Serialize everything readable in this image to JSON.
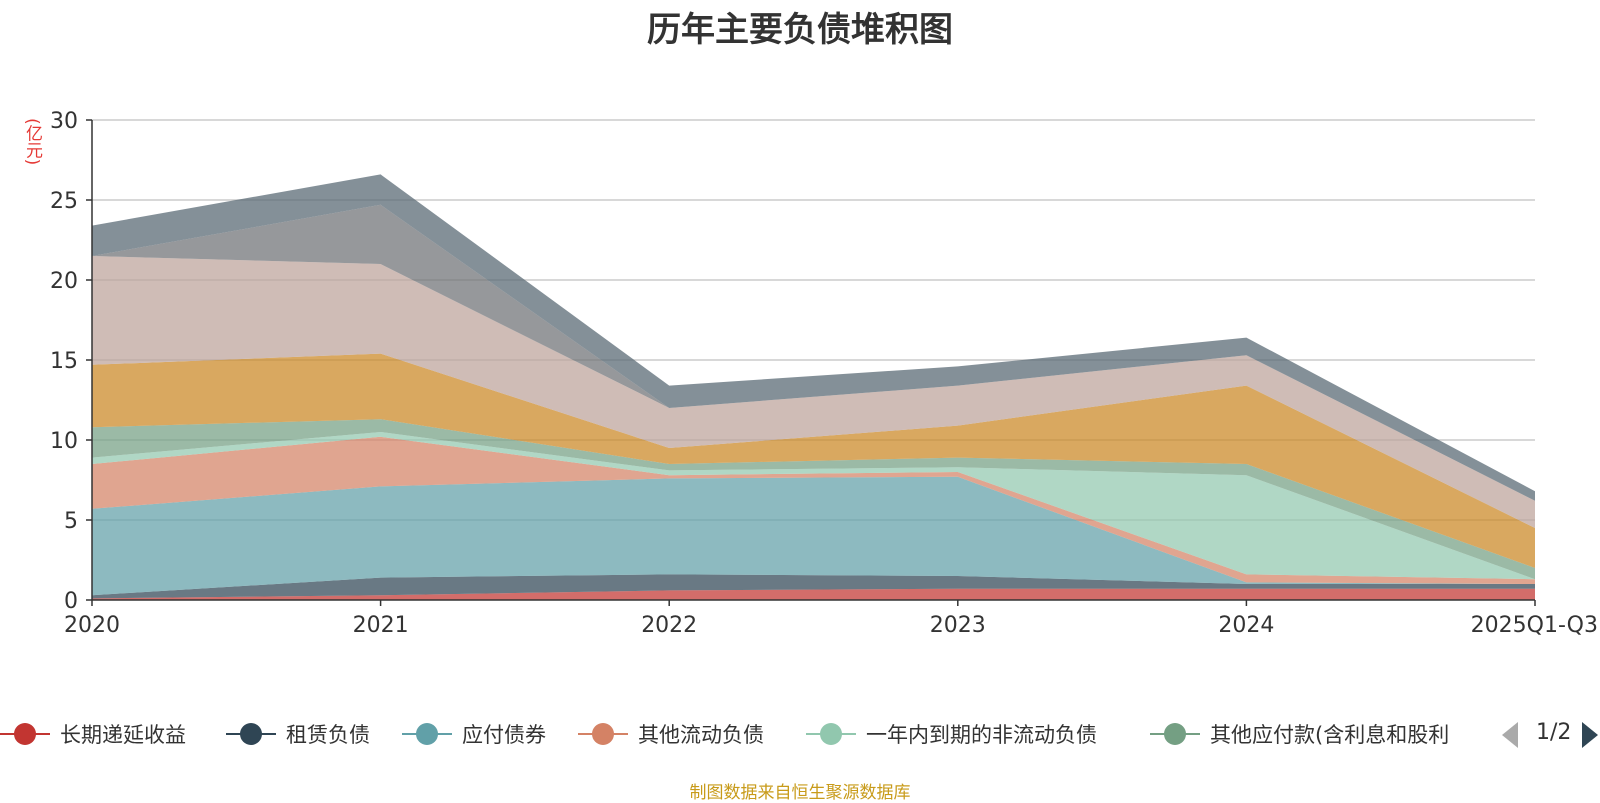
{
  "chart_data": {
    "type": "area",
    "stacked": true,
    "title": "历年主要负债堆积图",
    "ylabel": "(亿元)",
    "x": [
      "2020",
      "2021",
      "2022",
      "2023",
      "2024",
      "2025Q1-Q3"
    ],
    "ylim": [
      0,
      30
    ],
    "yticks": [
      0,
      5,
      10,
      15,
      20,
      25,
      30
    ],
    "grid": true,
    "series": [
      {
        "name": "长期递延收益",
        "color": "#c23531",
        "values": [
          0.1,
          0.3,
          0.6,
          0.7,
          0.7,
          0.7
        ]
      },
      {
        "name": "租赁负债",
        "color": "#2f4554",
        "values": [
          0.2,
          1.1,
          1.0,
          0.8,
          0.3,
          0.3
        ]
      },
      {
        "name": "应付债券",
        "color": "#61a0a8",
        "values": [
          5.4,
          5.7,
          6.0,
          6.2,
          0.1,
          0.0
        ]
      },
      {
        "name": "其他流动负债",
        "color": "#d48265",
        "values": [
          2.8,
          3.1,
          0.2,
          0.3,
          0.5,
          0.3
        ]
      },
      {
        "name": "一年内到期的非流动负债",
        "color": "#91c7ae",
        "values": [
          0.4,
          0.3,
          0.3,
          0.3,
          6.2,
          0.0
        ]
      },
      {
        "name": "其他应付款(含利息和股利",
        "color": "#749f83",
        "values": [
          1.9,
          0.8,
          0.4,
          0.6,
          0.7,
          0.7
        ]
      },
      {
        "name": "",
        "color": "#ca8622",
        "values": [
          3.9,
          4.1,
          1.0,
          2.0,
          4.9,
          2.5
        ]
      },
      {
        "name": "",
        "color": "#bda29a",
        "values": [
          6.8,
          5.6,
          2.5,
          2.5,
          1.9,
          1.7
        ]
      },
      {
        "name": "",
        "color": "#6e7074",
        "values": [
          0.0,
          3.7,
          0.0,
          0.0,
          0.0,
          0.0
        ]
      },
      {
        "name": "",
        "color": "#546570",
        "values": [
          1.9,
          1.9,
          1.4,
          1.2,
          1.1,
          0.6
        ]
      }
    ],
    "legend": {
      "placement": "bottom",
      "page": "1/2",
      "visible_count": 6
    }
  },
  "footer": "制图数据来自恒生聚源数据库"
}
